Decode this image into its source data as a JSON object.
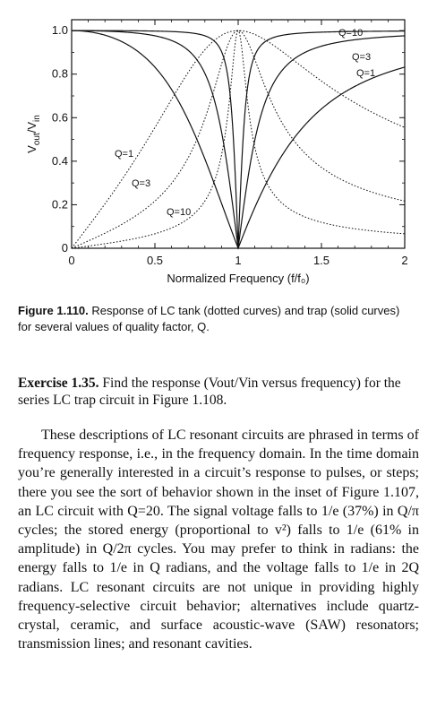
{
  "chart_data": {
    "type": "line",
    "xlabel": "Normalized Frequency (f/f₀)",
    "ylabel_main": "V",
    "ylabel_out": "out",
    "ylabel_slash": "/V",
    "ylabel_in": "in",
    "xlim": [
      0,
      2
    ],
    "ylim": [
      0,
      1.05
    ],
    "x_ticks": [
      "0",
      "0.5",
      "1",
      "1.5",
      "2"
    ],
    "y_ticks": [
      "0",
      "0.2",
      "0.4",
      "0.6",
      "0.8",
      "1.0"
    ],
    "x_tick_values": [
      0,
      0.5,
      1,
      1.5,
      2
    ],
    "y_tick_values": [
      0,
      0.2,
      0.4,
      0.6,
      0.8,
      1.0
    ],
    "series": [
      {
        "name": "Q=1",
        "kind": "tank",
        "style": "dotted",
        "Q": 1
      },
      {
        "name": "Q=3",
        "kind": "tank",
        "style": "dotted",
        "Q": 3
      },
      {
        "name": "Q=10",
        "kind": "tank",
        "style": "dotted",
        "Q": 10
      },
      {
        "name": "Q=1",
        "kind": "trap",
        "style": "solid",
        "Q": 1
      },
      {
        "name": "Q=3",
        "kind": "trap",
        "style": "solid",
        "Q": 3
      },
      {
        "name": "Q=10",
        "kind": "trap",
        "style": "solid",
        "Q": 10
      }
    ],
    "annotations": [
      "Q=10",
      "Q=3",
      "Q=1",
      "Q=1",
      "Q=3",
      "Q=10"
    ]
  },
  "caption": {
    "label": "Figure 1.110.",
    "text": " Response of LC tank (dotted curves) and trap (solid curves) for several values of quality factor, Q."
  },
  "exercise": {
    "label": "Exercise 1.35.",
    "text": " Find the response (Vout/Vin versus frequency) for the series LC trap circuit in Figure 1.108."
  },
  "body": {
    "paragraph": "These descriptions of LC resonant circuits are phrased in terms of frequency response, i.e., in the frequency domain. In the time domain you’re generally interested in a circuit’s response to pulses, or steps; there you see the sort of behavior shown in the inset of Figure 1.107, an LC circuit with Q=20. The signal voltage falls to 1/e (37%) in Q/π cycles; the stored energy (proportional to v²) falls to 1/e (61% in amplitude) in Q/2π cycles. You may prefer to think in radians: the energy falls to 1/e in Q radians, and the voltage falls to 1/e in 2Q radians. LC resonant circuits are not unique in providing highly frequency-selective circuit behavior; alternatives include quartz-crystal, ceramic, and surface acoustic-wave (SAW) resonators; transmission lines; and resonant cavities."
  }
}
